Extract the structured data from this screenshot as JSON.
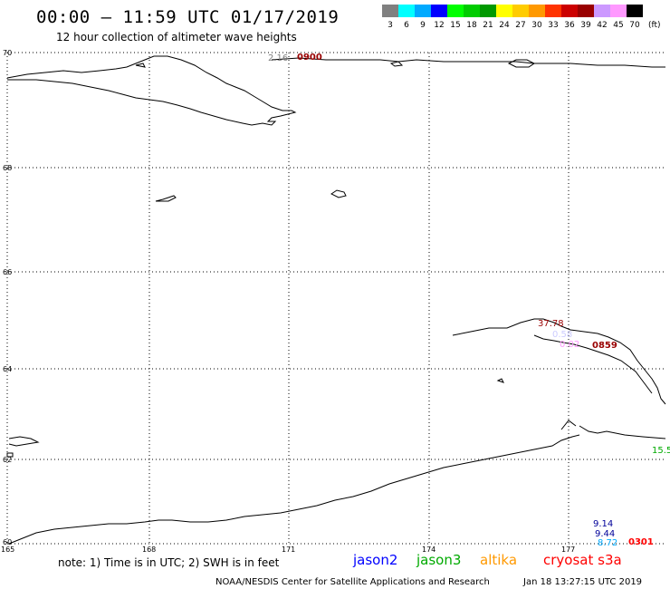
{
  "header": {
    "title": "00:00 – 11:59 UTC 01/17/2019",
    "subtitle": "12 hour collection of altimeter wave heights"
  },
  "color_scale": {
    "swatches": [
      "#808080",
      "#00ffff",
      "#00aaff",
      "#0000ff",
      "#00ff00",
      "#00cc00",
      "#009900",
      "#ffff00",
      "#ffcc00",
      "#ff9900",
      "#ff3300",
      "#cc0000",
      "#990000",
      "#cc99ff",
      "#ff99ff",
      "#000000"
    ],
    "labels": [
      "3",
      "6",
      "9",
      "12",
      "15",
      "18",
      "21",
      "24",
      "27",
      "30",
      "33",
      "36",
      "39",
      "42",
      "45",
      "70"
    ],
    "unit": "(ft)"
  },
  "map": {
    "lat_labels": [
      "70",
      "68",
      "66",
      "64",
      "62",
      "60"
    ],
    "lon_labels": [
      "165",
      "168",
      "171",
      "174",
      "177"
    ],
    "coastline_color": "#000000",
    "gridline_color": "#000000"
  },
  "observations": [
    {
      "text": "2.16",
      "color": "#808080"
    },
    {
      "text": "0900",
      "color": "#990000"
    },
    {
      "text": "37.78",
      "color": "#990000"
    },
    {
      "text": "0.58",
      "color": "#ccccff"
    },
    {
      "text": "0.02",
      "color": "#ff99ff"
    },
    {
      "text": "0859",
      "color": "#990000"
    },
    {
      "text": "15.5",
      "color": "#00aa00"
    },
    {
      "text": "9.14",
      "color": "#000099"
    },
    {
      "text": "9.44",
      "color": "#000099"
    },
    {
      "text": "8.72",
      "color": "#00aaff"
    },
    {
      "text": "0301",
      "color": "#ff0000"
    }
  ],
  "notes": {
    "note": "note:  1) Time is in UTC; 2) SWH is in feet"
  },
  "satellites": [
    {
      "name": "jason2",
      "color": "#0000ff"
    },
    {
      "name": "jason3",
      "color": "#00aa00"
    },
    {
      "name": "altika",
      "color": "#ff9900"
    },
    {
      "name": "cryosat s3a",
      "color": "#ff0000"
    }
  ],
  "footer": {
    "credit": "NOAA/NESDIS Center for Satellite Applications and Research",
    "timestamp": "Jan 18 13:27:15 UTC 2019"
  }
}
